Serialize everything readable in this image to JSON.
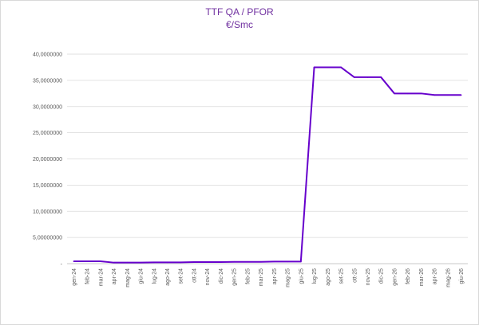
{
  "chart_data": {
    "type": "line",
    "title": "TTF QA / PFOR",
    "subtitle": "€/Smc",
    "xlabel": "",
    "ylabel": "",
    "ylim": [
      0,
      40
    ],
    "y_ticks": [
      0,
      5,
      10,
      15,
      20,
      25,
      30,
      35,
      40
    ],
    "y_tick_labels": [
      "-",
      "5,00000000",
      "10,0000000",
      "15,0000000",
      "20,0000000",
      "25,0000000",
      "30,0000000",
      "35,0000000",
      "40,0000000"
    ],
    "grid": true,
    "legend": "none",
    "line_color": "#6600cc",
    "categories": [
      "gen-24",
      "feb-24",
      "mar-24",
      "apr-24",
      "mag-24",
      "giu-24",
      "lug-24",
      "ago-24",
      "set-24",
      "ott-24",
      "nov-24",
      "dic-24",
      "gen-25",
      "feb-25",
      "mar-25",
      "apr-25",
      "mag-25",
      "giu-25",
      "lug-25",
      "ago-25",
      "set-25",
      "ott-25",
      "nov-25",
      "dic-25",
      "gen-26",
      "feb-26",
      "mar-26",
      "apr-26",
      "mag-26",
      "giu-26"
    ],
    "series": [
      {
        "values": [
          0.45,
          0.45,
          0.45,
          0.2,
          0.2,
          0.2,
          0.25,
          0.25,
          0.25,
          0.3,
          0.3,
          0.3,
          0.35,
          0.35,
          0.35,
          0.4,
          0.4,
          0.4,
          37.5,
          37.5,
          37.5,
          35.6,
          35.6,
          35.6,
          32.5,
          32.5,
          32.5,
          32.2,
          32.2,
          32.2
        ]
      }
    ]
  }
}
